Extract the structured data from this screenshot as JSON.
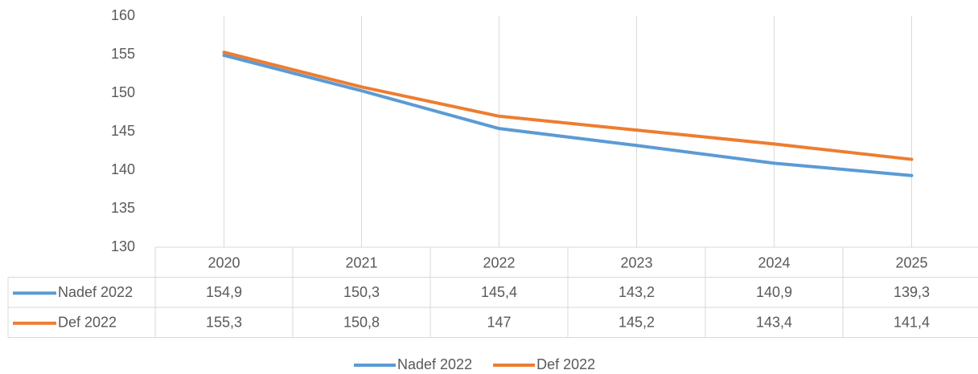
{
  "chart_data": {
    "type": "line",
    "categories": [
      "2020",
      "2021",
      "2022",
      "2023",
      "2024",
      "2025"
    ],
    "series": [
      {
        "name": "Nadef 2022",
        "color": "#5b9bd5",
        "values": [
          154.9,
          150.3,
          145.4,
          143.2,
          140.9,
          139.3
        ],
        "value_labels": [
          "154,9",
          "150,3",
          "145,4",
          "143,2",
          "140,9",
          "139,3"
        ]
      },
      {
        "name": "Def 2022",
        "color": "#ed7d31",
        "values": [
          155.3,
          150.8,
          147,
          145.2,
          143.4,
          141.4
        ],
        "value_labels": [
          "155,3",
          "150,8",
          "147",
          "145,2",
          "143,4",
          "141,4"
        ]
      }
    ],
    "ylim": [
      130,
      160
    ],
    "yticks": [
      130,
      135,
      140,
      145,
      150,
      155,
      160
    ],
    "xgrid": true,
    "legend": "bottom"
  }
}
